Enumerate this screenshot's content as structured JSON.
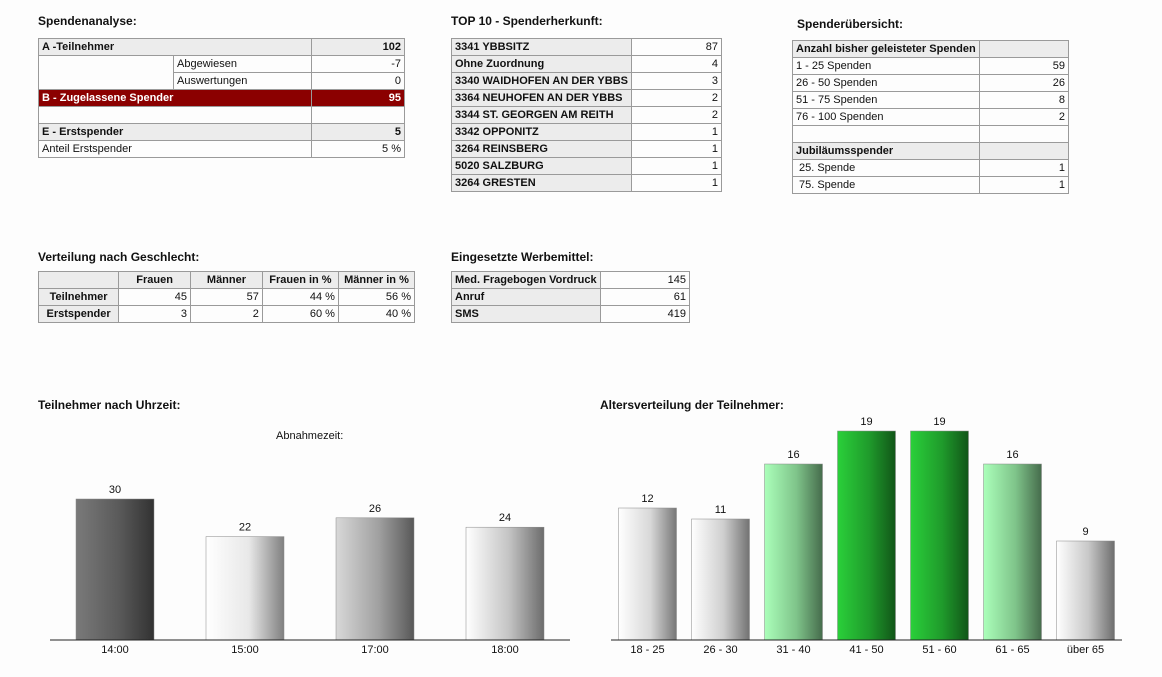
{
  "spendenanalyse": {
    "title": "Spendenanalyse:",
    "rows": [
      {
        "label": "A -Teilnehmer",
        "value": "102"
      },
      {
        "label": "Abgewiesen",
        "value": "-7"
      },
      {
        "label": "Auswertungen",
        "value": "0"
      },
      {
        "label": "B - Zugelassene Spender",
        "value": "95"
      },
      {
        "label": "E - Erstspender",
        "value": "5"
      },
      {
        "label": "Anteil Erstspender",
        "value": "5 %"
      }
    ]
  },
  "top10": {
    "title": "TOP 10 - Spenderherkunft:",
    "rows": [
      {
        "label": "3341 YBBSITZ",
        "value": "87"
      },
      {
        "label": "Ohne Zuordnung",
        "value": "4"
      },
      {
        "label": "3340 WAIDHOFEN AN DER YBBS",
        "value": "3"
      },
      {
        "label": "3364 NEUHOFEN AN DER YBBS",
        "value": "2"
      },
      {
        "label": "3344 ST. GEORGEN AM REITH",
        "value": "2"
      },
      {
        "label": "3342 OPPONITZ",
        "value": "1"
      },
      {
        "label": "3264 REINSBERG",
        "value": "1"
      },
      {
        "label": "5020 SALZBURG",
        "value": "1"
      },
      {
        "label": "3264 GRESTEN",
        "value": "1"
      }
    ]
  },
  "uebersicht": {
    "title": "Spenderübersicht:",
    "header1": "Anzahl bisher geleisteter Spenden",
    "rows1": [
      {
        "label": "1 - 25 Spenden",
        "value": "59"
      },
      {
        "label": "26 - 50 Spenden",
        "value": "26"
      },
      {
        "label": "51 - 75 Spenden",
        "value": "8"
      },
      {
        "label": "76 - 100 Spenden",
        "value": "2"
      }
    ],
    "header2": "Jubiläumsspender",
    "rows2": [
      {
        "label": "25. Spende",
        "value": "1"
      },
      {
        "label": "75. Spende",
        "value": "1"
      }
    ]
  },
  "geschlecht": {
    "title": "Verteilung nach Geschlecht:",
    "cols": [
      "Frauen",
      "Männer",
      "Frauen in %",
      "Männer in %"
    ],
    "rows": [
      {
        "label": "Teilnehmer",
        "cells": [
          "45",
          "57",
          "44 %",
          "56 %"
        ]
      },
      {
        "label": "Erstspender",
        "cells": [
          "3",
          "2",
          "60 %",
          "40 %"
        ]
      }
    ]
  },
  "werbemittel": {
    "title": "Eingesetzte Werbemittel:",
    "rows": [
      {
        "label": "Med. Fragebogen Vordruck",
        "value": "145"
      },
      {
        "label": "Anruf",
        "value": "61"
      },
      {
        "label": "SMS",
        "value": "419"
      }
    ]
  },
  "chart_data": [
    {
      "type": "bar",
      "title": "Teilnehmer nach Uhrzeit:",
      "subtitle": "Abnahmezeit:",
      "categories": [
        "14:00",
        "15:00",
        "17:00",
        "18:00"
      ],
      "values": [
        30,
        22,
        26,
        24
      ],
      "colors": [
        "#5a5a5a",
        "#e8e8e8",
        "#a0a0a0",
        "#c4c4c4"
      ],
      "ylim": [
        0,
        30
      ]
    },
    {
      "type": "bar",
      "title": "Altersverteilung der Teilnehmer:",
      "categories": [
        "18 - 25",
        "26 - 30",
        "31 - 40",
        "41 - 50",
        "51 - 60",
        "61 - 65",
        "über 65"
      ],
      "values": [
        12,
        11,
        16,
        19,
        19,
        16,
        9
      ],
      "colors": [
        "#d8d8d8",
        "#cfcfcf",
        "#7fc48a",
        "#1f9a2b",
        "#1f9a2b",
        "#7fc48a",
        "#c8c8c8"
      ],
      "ylim": [
        0,
        19
      ]
    }
  ]
}
